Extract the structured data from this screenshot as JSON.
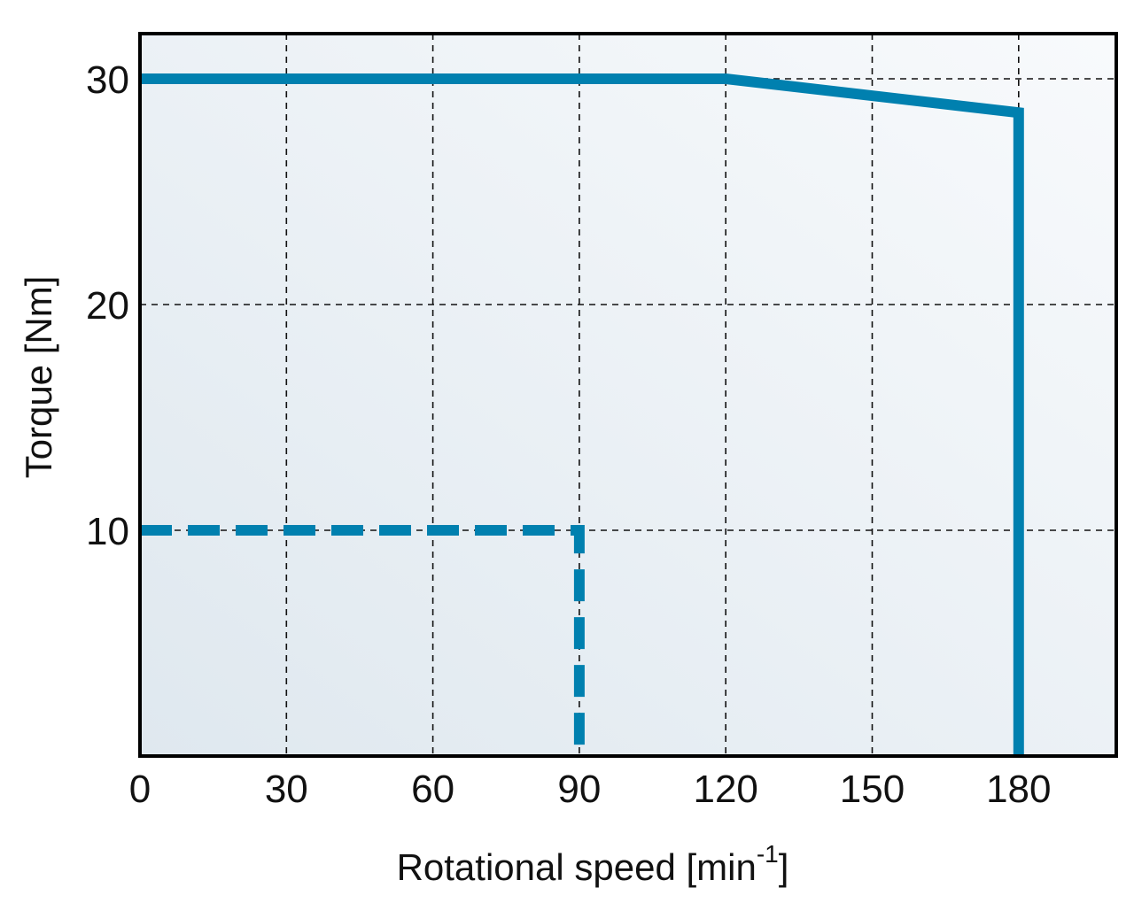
{
  "chart_data": {
    "type": "line",
    "title": "",
    "xlabel": "Rotational speed [min",
    "xlabel_superscript": "-1",
    "xlabel_suffix": "]",
    "ylabel": "Torque [Nm]",
    "xlim": [
      0,
      200
    ],
    "ylim": [
      0,
      32
    ],
    "x_ticks": [
      0,
      30,
      60,
      90,
      120,
      150,
      180
    ],
    "y_ticks": [
      10,
      20,
      30
    ],
    "x_tick_labels": [
      "0",
      "30",
      "60",
      "90",
      "120",
      "150",
      "180"
    ],
    "y_tick_labels": [
      "10",
      "20",
      "30"
    ],
    "grid": true,
    "legend": "none",
    "series": [
      {
        "style": "solid",
        "color": "#0080AF",
        "x": [
          0,
          120,
          180,
          180
        ],
        "y": [
          30,
          30,
          28.5,
          0
        ]
      },
      {
        "style": "dashed",
        "color": "#0080AF",
        "x": [
          0,
          90,
          90
        ],
        "y": [
          10,
          10,
          0
        ]
      }
    ]
  },
  "colors": {
    "series": "#0080AF",
    "grid": "#111111",
    "plot_bg_light": "#f8fafc",
    "plot_bg_dark": "#dfe8ef"
  }
}
